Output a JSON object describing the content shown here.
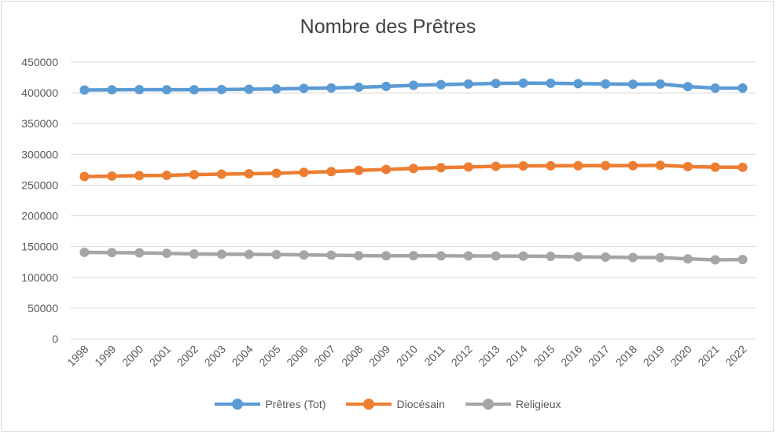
{
  "chart_data": {
    "type": "line",
    "title": "Nombre des Prêtres",
    "xlabel": "",
    "ylabel": "",
    "ylim": [
      0,
      450000
    ],
    "yticks": [
      "0",
      "50000",
      "100000",
      "150000",
      "200000",
      "250000",
      "300000",
      "350000",
      "400000",
      "450000"
    ],
    "grid": true,
    "legend_position": "bottom",
    "x": [
      "1998",
      "1999",
      "2000",
      "2001",
      "2002",
      "2003",
      "2004",
      "2005",
      "2006",
      "2007",
      "2008",
      "2009",
      "2010",
      "2011",
      "2012",
      "2013",
      "2014",
      "2015",
      "2016",
      "2017",
      "2018",
      "2019",
      "2020",
      "2021",
      "2022"
    ],
    "series": [
      {
        "name": "Prêtres (Tot)",
        "color": "#5b9bd5",
        "values": [
          404626,
          405009,
          405178,
          405067,
          405058,
          405450,
          405891,
          406411,
          407262,
          408024,
          409166,
          410593,
          412236,
          413418,
          414313,
          415348,
          415792,
          415656,
          414969,
          414582,
          414065,
          414336,
          410219,
          407730,
          407872
        ]
      },
      {
        "name": "Diocésain",
        "color": "#ed7d31",
        "values": [
          263926,
          264709,
          265378,
          265967,
          267058,
          267850,
          268491,
          269311,
          270762,
          271924,
          273866,
          275493,
          277036,
          278418,
          279413,
          280548,
          281192,
          281356,
          281569,
          281682,
          281765,
          282136,
          280119,
          279230,
          278972
        ]
      },
      {
        "name": "Religieux",
        "color": "#a5a5a5",
        "values": [
          140700,
          140300,
          139800,
          139100,
          138000,
          137600,
          137400,
          137100,
          136500,
          136100,
          135300,
          135100,
          135200,
          135000,
          134900,
          134800,
          134600,
          134300,
          133400,
          132900,
          132300,
          132200,
          130100,
          128500,
          128900
        ]
      }
    ]
  }
}
